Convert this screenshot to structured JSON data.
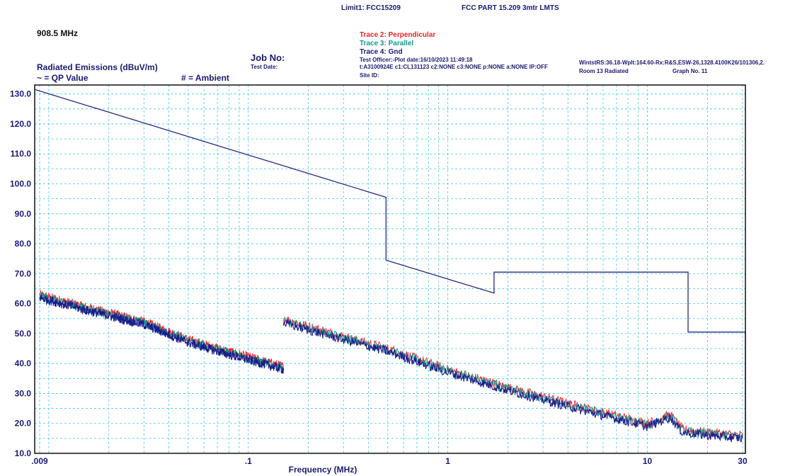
{
  "header": {
    "frequency_display": "908.5 MHz",
    "limit_title": "Limit1: FCC15209",
    "limit_description": "FCC PART 15.209 3mtr LMTS",
    "chart_title": "Radiated Emissions (dBuV/m)",
    "qp_legend": "~ = QP Value",
    "ambient_legend": "# = Ambient",
    "job_no_label": "Job No:",
    "test_date_label": "Test Date:",
    "trace2_label": "Trace 2: Perpendicular",
    "trace3_label": "Trace 3: Parallel",
    "trace4_label": "Trace 4: Gnd",
    "test_officer_line": "Test Officer:-Plot date:16/10/2023 11:49:18",
    "cal_line": "t:A3100924E c1:CL131123  c2:NONE  c3:NONE p:NONE a:NONE IP:OFF",
    "site_id_label": "Site ID:",
    "equipment_line": "WintstRS:36.18-Wplt:164.60-Rx:R&S,ESW-26,1328.4100K26/101306,2.",
    "room_label": "Room 13 Radiated",
    "graph_no_label": "Graph No.  11"
  },
  "colors": {
    "trace2": "#e8232a",
    "trace3": "#149a8a",
    "trace4": "#1a1a8c",
    "limit": "#2a2a7e",
    "grid": "#47c8e8",
    "axis_text": "#1a1a6e"
  },
  "chart_data": {
    "type": "line",
    "title": "Radiated Emissions (dBuV/m)",
    "xlabel": "Frequency (MHz)",
    "ylabel": "",
    "x_scale": "log",
    "xlim": [
      0.0085,
      31
    ],
    "ylim": [
      10,
      133
    ],
    "x_ticks": [
      0.009,
      0.1,
      1,
      10,
      30
    ],
    "x_tick_labels": [
      ".009",
      ".1",
      "1",
      "10",
      "30"
    ],
    "y_ticks": [
      10,
      20,
      30,
      40,
      50,
      60,
      70,
      80,
      90,
      100,
      110,
      120,
      130
    ],
    "y_tick_labels": [
      "10.0",
      "20.0",
      "30.0",
      "40.0",
      "50.0",
      "60.0",
      "70.0",
      "80.0",
      "90.0",
      "100.0",
      "110.0",
      "120.0",
      "130.0"
    ],
    "grid": true,
    "limit_line": {
      "name": "Limit1: FCC15209",
      "x": [
        0.0085,
        0.49,
        0.49,
        1.705,
        1.705,
        16,
        16,
        31,
        31
      ],
      "y": [
        131.5,
        95.5,
        74.5,
        63.5,
        70.5,
        70.5,
        50.5,
        50.5,
        10
      ]
    },
    "series": [
      {
        "name": "Trace 2: Perpendicular",
        "segments": [
          {
            "x": [
              0.009,
              0.015,
              0.03,
              0.05,
              0.08,
              0.15
            ],
            "y": [
              63,
              59,
              54,
              48,
              44,
              39
            ]
          },
          {
            "x": [
              0.15,
              0.3,
              0.5,
              1,
              2,
              5,
              10,
              13,
              15,
              20,
              30
            ],
            "y": [
              55,
              49,
              45,
              38,
              32,
              25,
              20,
              23,
              18,
              17,
              16
            ]
          }
        ]
      },
      {
        "name": "Trace 3: Parallel",
        "segments": [
          {
            "x": [
              0.009,
              0.015,
              0.03,
              0.05,
              0.08,
              0.15
            ],
            "y": [
              62.5,
              58.5,
              53.5,
              47.5,
              43.5,
              38.5
            ]
          },
          {
            "x": [
              0.15,
              0.3,
              0.5,
              1,
              2,
              5,
              10,
              13,
              15,
              20,
              30
            ],
            "y": [
              54,
              48.5,
              44.5,
              37.5,
              31.5,
              24.5,
              19.5,
              22.5,
              17.5,
              16.5,
              15.5
            ]
          }
        ]
      },
      {
        "name": "Trace 4: Gnd",
        "segments": [
          {
            "x": [
              0.009,
              0.015,
              0.03,
              0.05,
              0.08,
              0.15
            ],
            "y": [
              62,
              58,
              53,
              47,
              43,
              38
            ]
          },
          {
            "x": [
              0.15,
              0.3,
              0.5,
              1,
              2,
              5,
              10,
              13,
              15,
              20,
              30
            ],
            "y": [
              53.5,
              48,
              44,
              37,
              31,
              24,
              19,
              22,
              17,
              16,
              15
            ]
          }
        ]
      }
    ]
  }
}
